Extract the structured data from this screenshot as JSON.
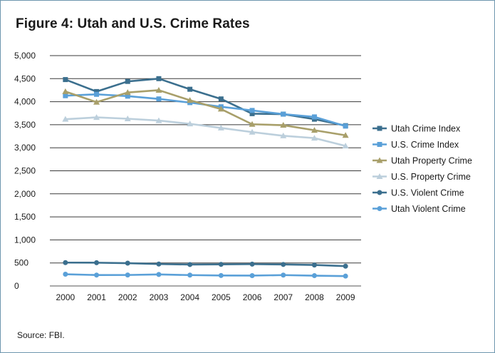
{
  "chart_data": {
    "type": "line",
    "title": "Figure 4: Utah and U.S. Crime Rates",
    "source": "Source: FBI.",
    "x": [
      "2000",
      "2001",
      "2002",
      "2003",
      "2004",
      "2005",
      "2006",
      "2007",
      "2008",
      "2009"
    ],
    "ylim": [
      0,
      5000
    ],
    "yticks": [
      0,
      500,
      1000,
      1500,
      2000,
      2500,
      3000,
      3500,
      4000,
      4500,
      5000
    ],
    "ytick_labels": [
      "0",
      "500",
      "1,000",
      "1,500",
      "2,000",
      "2,500",
      "3,000",
      "3,500",
      "4,000",
      "4,500",
      "5,000"
    ],
    "grid": "horizontal",
    "legend_position": "right",
    "series": [
      {
        "name": "Utah Crime Index",
        "color": "#3b6f8e",
        "marker": "square",
        "values": [
          4480,
          4220,
          4440,
          4500,
          4270,
          4060,
          3740,
          3730,
          3620,
          3480
        ]
      },
      {
        "name": "U.S. Crime Index",
        "color": "#5aa0d8",
        "marker": "square",
        "values": [
          4130,
          4160,
          4120,
          4060,
          3980,
          3890,
          3810,
          3730,
          3670,
          3470
        ]
      },
      {
        "name": "Utah Property Crime",
        "color": "#a89f6a",
        "marker": "triangle",
        "values": [
          4220,
          3990,
          4200,
          4250,
          4030,
          3840,
          3510,
          3490,
          3380,
          3270
        ]
      },
      {
        "name": "U.S. Property Crime",
        "color": "#bccfdc",
        "marker": "triangle",
        "values": [
          3620,
          3660,
          3630,
          3590,
          3520,
          3430,
          3340,
          3260,
          3210,
          3040
        ]
      },
      {
        "name": "U.S. Violent Crime",
        "color": "#3b6f8e",
        "marker": "circle",
        "values": [
          507,
          505,
          495,
          476,
          465,
          469,
          474,
          467,
          455,
          430
        ]
      },
      {
        "name": "Utah Violent Crime",
        "color": "#5aa0d8",
        "marker": "circle",
        "values": [
          255,
          237,
          238,
          250,
          236,
          227,
          225,
          236,
          224,
          214
        ]
      }
    ]
  }
}
